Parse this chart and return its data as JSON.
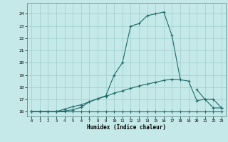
{
  "xlabel": "Humidex (Indice chaleur)",
  "bg_color": "#c5e8e8",
  "line_color": "#1a6b6b",
  "grid_color": "#9fcece",
  "xlim": [
    -0.5,
    23.5
  ],
  "ylim": [
    15.6,
    24.9
  ],
  "xticks": [
    0,
    1,
    2,
    3,
    4,
    5,
    6,
    7,
    8,
    9,
    10,
    11,
    12,
    13,
    14,
    15,
    16,
    17,
    18,
    19,
    20,
    21,
    22,
    23
  ],
  "yticks": [
    16,
    17,
    18,
    19,
    20,
    21,
    22,
    23,
    24
  ],
  "line1_y": [
    16,
    16,
    16,
    16,
    16,
    16,
    16,
    16,
    16,
    16,
    16,
    16,
    16,
    16,
    16,
    16,
    16,
    16,
    16,
    16,
    16,
    16,
    16,
    16
  ],
  "line2_y": [
    16,
    16,
    16,
    16,
    16.2,
    16.4,
    16.55,
    16.8,
    17.05,
    17.25,
    17.5,
    17.7,
    17.9,
    18.1,
    18.25,
    18.4,
    18.55,
    18.65,
    18.6,
    18.5,
    16.9,
    17.0,
    16.3,
    16.3
  ],
  "line3_y": [
    16,
    16,
    16,
    16,
    16.05,
    16.15,
    16.35,
    16.8,
    17.05,
    17.3,
    19.0,
    20.0,
    23.0,
    23.2,
    23.85,
    24.0,
    24.15,
    22.2,
    18.65,
    null,
    17.8,
    17.0,
    17.0,
    16.3
  ]
}
